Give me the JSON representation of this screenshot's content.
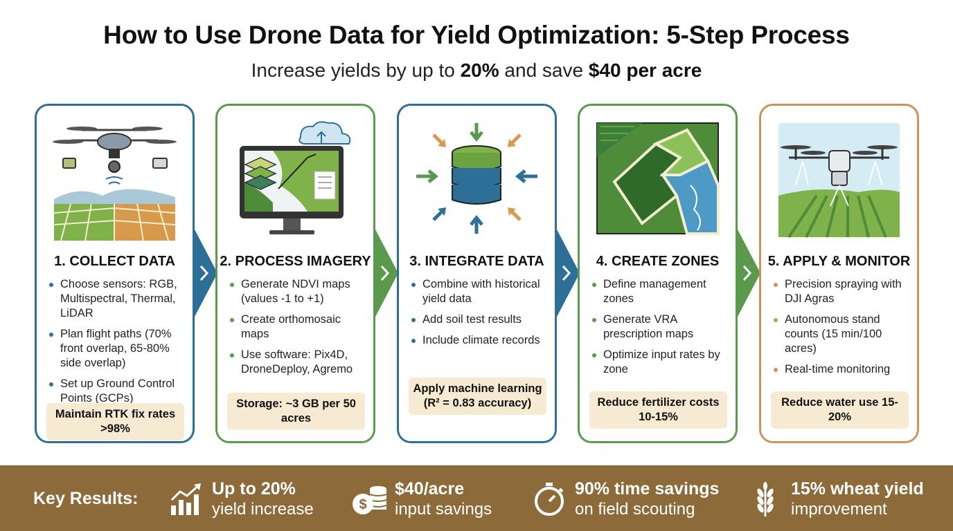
{
  "header": {
    "title": "How to Use Drone Data for Yield Optimization: 5-Step Process",
    "subtitle_prefix": "Increase yields by up to ",
    "subtitle_highlight1": "20%",
    "subtitle_middle": " and save ",
    "subtitle_highlight2": "$40 per acre"
  },
  "steps": [
    {
      "title": "1. COLLECT DATA",
      "bullets": [
        "Choose sensors: RGB, Multispectral, Thermal, LiDAR",
        "Plan flight paths (70% front overlap, 65-80% side overlap)",
        "Set up Ground Control Points (GCPs)"
      ],
      "callout": "Maintain RTK fix rates >98%",
      "icon": "drone-survey-icon"
    },
    {
      "title": "2. PROCESS IMAGERY",
      "bullets": [
        "Generate NDVI maps (values -1 to +1)",
        "Create orthomosaic maps",
        "Use software: Pix4D, DroneDeploy, Agremo"
      ],
      "callout": "Storage: ~3 GB per 50 acres",
      "icon": "monitor-cloud-icon"
    },
    {
      "title": "3. INTEGRATE DATA",
      "bullets": [
        "Combine with historical yield data",
        "Add soil test results",
        "Include climate records"
      ],
      "callout": "Apply machine learning (R² = 0.83 accuracy)",
      "icon": "database-icon"
    },
    {
      "title": "4. CREATE ZONES",
      "bullets": [
        "Define management zones",
        "Generate VRA prescription maps",
        "Optimize input rates by zone"
      ],
      "callout": "Reduce fertilizer costs 10-15%",
      "icon": "zone-map-icon"
    },
    {
      "title": "5. APPLY & MONITOR",
      "bullets": [
        "Precision spraying with DJI Agras",
        "Autonomous stand counts (15 min/100 acres)",
        "Real-time monitoring"
      ],
      "callout": "Reduce water use 15-20%",
      "icon": "spray-drone-icon"
    }
  ],
  "footer": {
    "label": "Key Results:",
    "results": [
      {
        "main": "Up to 20%",
        "sub": "yield increase",
        "icon": "growth-chart-icon"
      },
      {
        "main": "$40/acre",
        "sub": "input savings",
        "icon": "coins-icon"
      },
      {
        "main": "90% time savings",
        "sub": "on field scouting",
        "icon": "stopwatch-icon"
      },
      {
        "main": "15% wheat yield",
        "sub": "improvement",
        "icon": "wheat-icon"
      }
    ]
  },
  "colors": {
    "blue": "#2e6f97",
    "green": "#5b9a4c",
    "brown": "#c9935a",
    "callout_bg": "#f6ead3",
    "footer_bg": "#8c6a3a"
  }
}
